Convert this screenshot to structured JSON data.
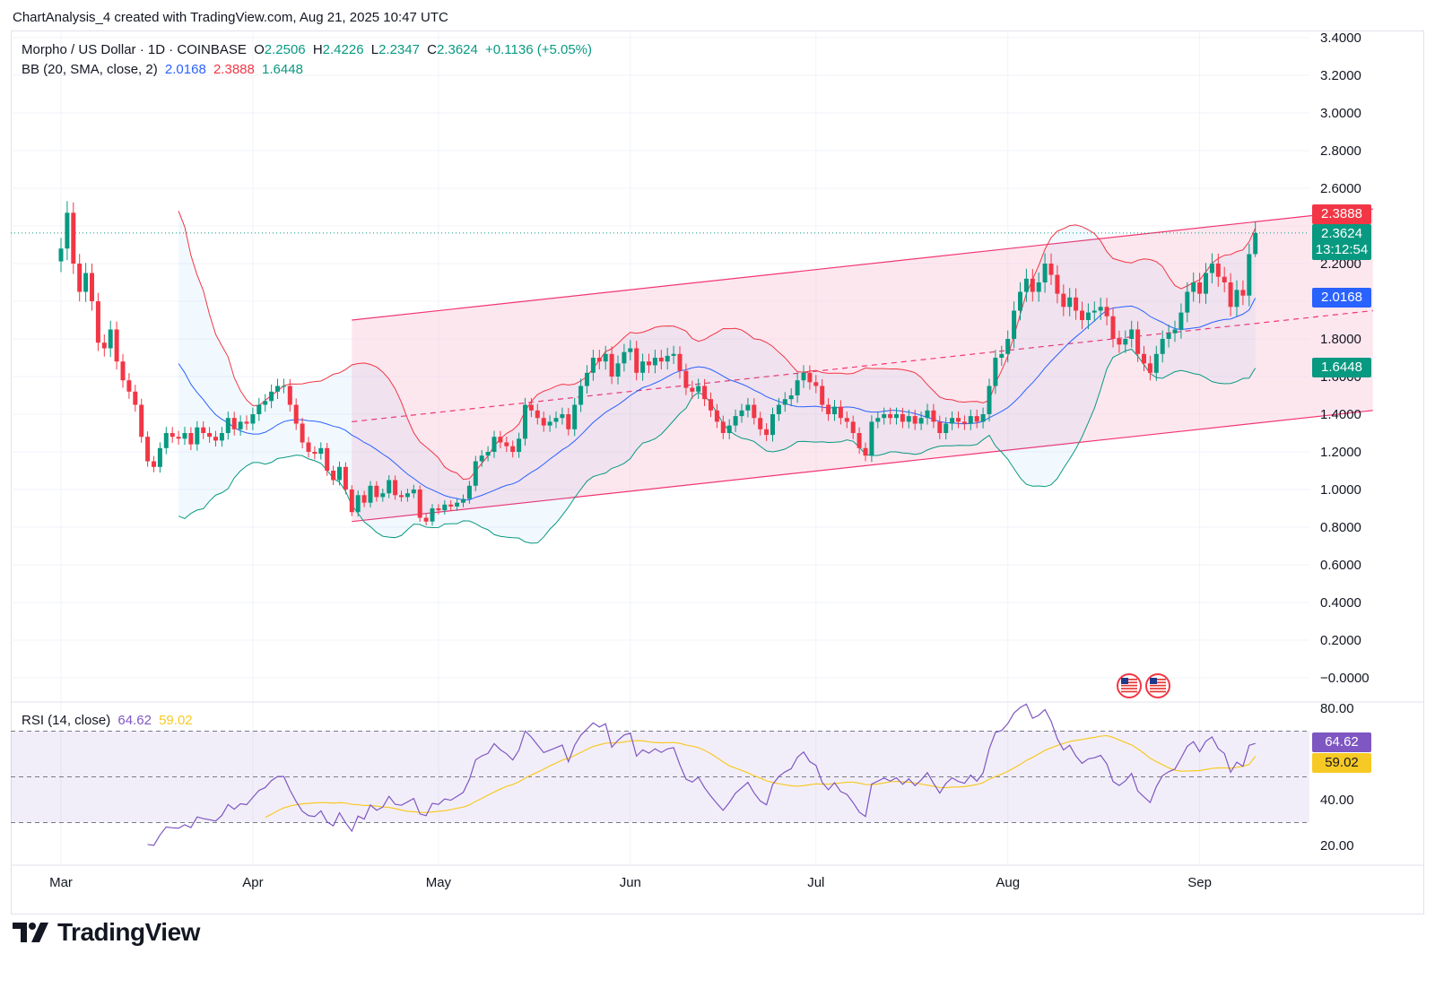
{
  "header": {
    "caption": "ChartAnalysis_4 created with TradingView.com, Aug 21, 2025 10:47 UTC"
  },
  "legend": {
    "symbol": "Morpho / US Dollar · 1D · COINBASE",
    "o_label": "O",
    "o_value": "2.2506",
    "h_label": "H",
    "h_value": "2.4226",
    "l_label": "L",
    "l_value": "2.2347",
    "c_label": "C",
    "c_value": "2.3624",
    "change": "+0.1136 (+5.05%)",
    "bb_label": "BB (20, SMA, close, 2)",
    "bb_basis": "2.0168",
    "bb_upper": "2.3888",
    "bb_lower": "1.6448",
    "rsi_label": "RSI (14, close)",
    "rsi_value": "64.62",
    "rsi_ma": "59.02"
  },
  "price_tags": {
    "upper": "2.3888",
    "last": "2.3624",
    "countdown": "13:12:54",
    "basis": "2.0168",
    "lower": "1.6448",
    "rsi": "64.62",
    "rsi_ma": "59.02"
  },
  "colors": {
    "up": "#089981",
    "down": "#f23645",
    "basis": "#2962ff",
    "upper_band": "#f23645",
    "lower_band": "#089981",
    "channel_fill": "#f8bbd0",
    "rsi": "#7e57c2",
    "rsi_ma": "#f7c925"
  },
  "brand": {
    "logo_text": "TradingView"
  },
  "icons": [
    "us-flag-event-icon",
    "us-flag-event-icon"
  ],
  "chart_data": [
    {
      "type": "candlestick",
      "title": "Morpho / US Dollar · 1D · COINBASE",
      "ylim": [
        -0.1,
        3.45
      ],
      "y_ticks": [
        "3.4000",
        "3.2000",
        "3.0000",
        "2.8000",
        "2.6000",
        "2.2000",
        "1.8000",
        "1.6000",
        "1.4000",
        "1.2000",
        "1.0000",
        "0.8000",
        "0.6000",
        "0.4000",
        "0.2000",
        "−0.0000"
      ],
      "x_ticks": [
        "Mar",
        "Apr",
        "May",
        "Jun",
        "Jul",
        "Aug",
        "Sep"
      ],
      "x_tick_days": [
        0,
        31,
        61,
        92,
        122,
        153,
        184
      ],
      "day_zero": "Mar 1, 2025",
      "close": [
        2.28,
        2.47,
        2.2,
        2.05,
        2.15,
        2.0,
        1.78,
        1.75,
        1.85,
        1.68,
        1.58,
        1.52,
        1.45,
        1.28,
        1.15,
        1.12,
        1.22,
        1.3,
        1.28,
        1.27,
        1.3,
        1.24,
        1.33,
        1.3,
        1.28,
        1.26,
        1.3,
        1.38,
        1.32,
        1.36,
        1.35,
        1.4,
        1.45,
        1.47,
        1.52,
        1.55,
        1.55,
        1.45,
        1.35,
        1.25,
        1.2,
        1.19,
        1.22,
        1.1,
        1.05,
        1.12,
        1.0,
        0.88,
        0.97,
        0.93,
        1.02,
        0.96,
        0.98,
        1.05,
        0.97,
        0.96,
        0.98,
        1.0,
        0.85,
        0.83,
        0.9,
        0.89,
        0.92,
        0.91,
        0.93,
        0.95,
        1.02,
        1.15,
        1.18,
        1.2,
        1.28,
        1.25,
        1.23,
        1.2,
        1.27,
        1.45,
        1.42,
        1.38,
        1.34,
        1.36,
        1.38,
        1.4,
        1.32,
        1.45,
        1.55,
        1.62,
        1.7,
        1.68,
        1.72,
        1.6,
        1.67,
        1.73,
        1.75,
        1.62,
        1.68,
        1.66,
        1.7,
        1.68,
        1.71,
        1.72,
        1.63,
        1.54,
        1.52,
        1.55,
        1.48,
        1.42,
        1.36,
        1.3,
        1.34,
        1.39,
        1.42,
        1.45,
        1.38,
        1.32,
        1.29,
        1.4,
        1.45,
        1.48,
        1.5,
        1.58,
        1.62,
        1.57,
        1.55,
        1.45,
        1.4,
        1.44,
        1.38,
        1.36,
        1.3,
        1.22,
        1.18,
        1.36,
        1.38,
        1.4,
        1.38,
        1.4,
        1.36,
        1.39,
        1.35,
        1.38,
        1.42,
        1.36,
        1.3,
        1.35,
        1.38,
        1.36,
        1.35,
        1.39,
        1.36,
        1.4,
        1.55,
        1.7,
        1.72,
        1.8,
        1.95,
        2.05,
        2.12,
        2.05,
        2.1,
        2.2,
        2.14,
        2.04,
        1.97,
        2.02,
        1.95,
        1.9,
        1.94,
        1.95,
        1.97,
        1.92,
        1.8,
        1.77,
        1.8,
        1.85,
        1.72,
        1.67,
        1.62,
        1.72,
        1.8,
        1.83,
        1.85,
        1.94,
        2.05,
        2.1,
        2.04,
        2.15,
        2.2,
        2.13,
        2.1,
        1.97,
        2.06,
        2.03,
        2.25,
        2.36
      ],
      "bb_basis_last": 2.0168,
      "bb_upper_last": 2.3888,
      "bb_lower_last": 1.6448,
      "channel": {
        "upper": [
          [
            47,
            1.9
          ],
          [
            212,
            2.49
          ]
        ],
        "middle": [
          [
            47,
            1.36
          ],
          [
            212,
            1.95
          ]
        ],
        "lower": [
          [
            47,
            0.83
          ],
          [
            212,
            1.42
          ]
        ]
      },
      "last_price": 2.3624
    },
    {
      "type": "line",
      "title": "RSI (14, close)",
      "ylim": [
        10,
        85
      ],
      "y_ticks": [
        "80.00",
        "40.00",
        "20.00"
      ],
      "levels": [
        70,
        50,
        30
      ],
      "rsi_last": 64.62,
      "rsi_ma_last": 59.02
    }
  ]
}
